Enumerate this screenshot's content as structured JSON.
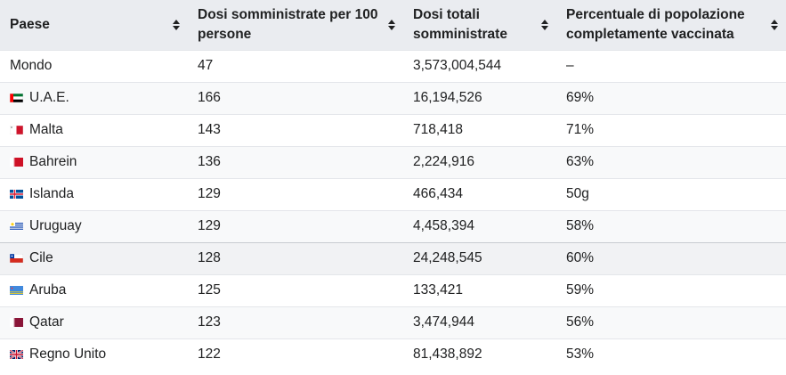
{
  "columns": [
    {
      "label": "Paese"
    },
    {
      "label": "Dosi somministrate per 100 persone"
    },
    {
      "label": "Dosi totali somministrate"
    },
    {
      "label": "Percentuale di popolazione completamente vaccinata"
    }
  ],
  "rows": [
    {
      "country": "Mondo",
      "doses_per_100": "47",
      "total_doses": "3,573,004,544",
      "fully_vaccinated": "–",
      "flag": ""
    },
    {
      "country": "U.A.E.",
      "doses_per_100": "166",
      "total_doses": "16,194,526",
      "fully_vaccinated": "69%",
      "flag": "uae-flag-icon"
    },
    {
      "country": "Malta",
      "doses_per_100": "143",
      "total_doses": "718,418",
      "fully_vaccinated": "71%",
      "flag": "malta-flag-icon"
    },
    {
      "country": "Bahrein",
      "doses_per_100": "136",
      "total_doses": "2,224,916",
      "fully_vaccinated": "63%",
      "flag": "bahrain-flag-icon"
    },
    {
      "country": "Islanda",
      "doses_per_100": "129",
      "total_doses": "466,434",
      "fully_vaccinated": "50g",
      "flag": "iceland-flag-icon"
    },
    {
      "country": "Uruguay",
      "doses_per_100": "129",
      "total_doses": "4,458,394",
      "fully_vaccinated": "58%",
      "flag": "uruguay-flag-icon"
    },
    {
      "country": "Cile",
      "doses_per_100": "128",
      "total_doses": "24,248,545",
      "fully_vaccinated": "60%",
      "flag": "chile-flag-icon"
    },
    {
      "country": "Aruba",
      "doses_per_100": "125",
      "total_doses": "133,421",
      "fully_vaccinated": "59%",
      "flag": "aruba-flag-icon"
    },
    {
      "country": "Qatar",
      "doses_per_100": "123",
      "total_doses": "3,474,944",
      "fully_vaccinated": "56%",
      "flag": "qatar-flag-icon"
    },
    {
      "country": "Regno Unito",
      "doses_per_100": "122",
      "total_doses": "81,438,892",
      "fully_vaccinated": "53%",
      "flag": "uk-flag-icon"
    }
  ],
  "icons": {
    "sort": "sort-arrows-icon"
  }
}
